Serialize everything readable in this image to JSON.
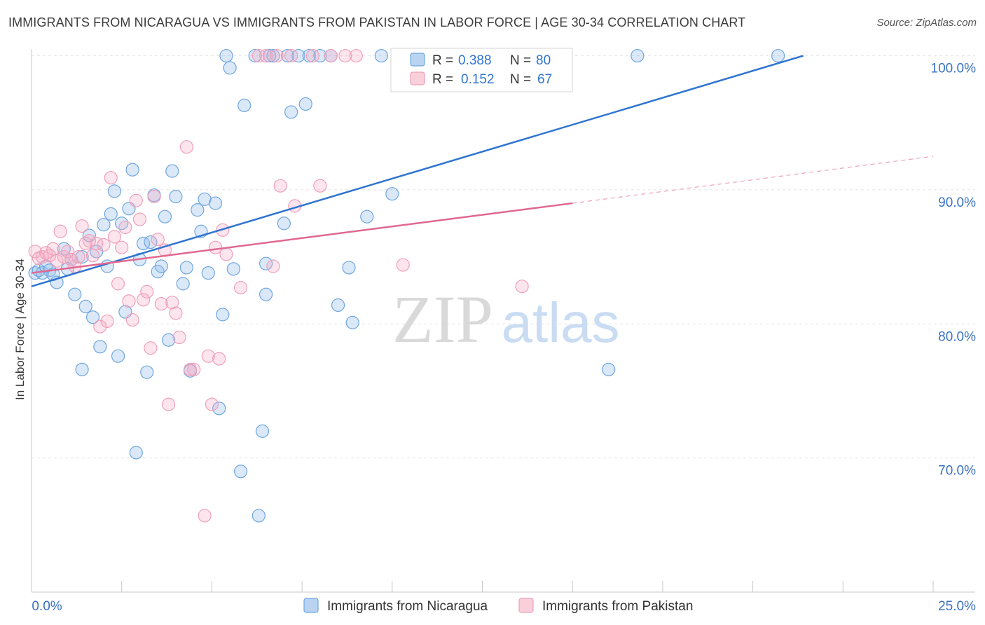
{
  "header": {
    "title": "IMMIGRANTS FROM NICARAGUA VS IMMIGRANTS FROM PAKISTAN IN LABOR FORCE | AGE 30-34 CORRELATION CHART",
    "source": "Source: ZipAtlas.com"
  },
  "watermark": {
    "part1": "ZIP",
    "part2": "atlas"
  },
  "chart_data": {
    "type": "scatter",
    "xlabel": "",
    "ylabel": "In Labor Force | Age 30-34",
    "xlim": [
      0,
      25
    ],
    "ylim": [
      60,
      100.5
    ],
    "x_tick_labels": [
      {
        "value": 0,
        "label": "0.0%"
      },
      {
        "value": 25,
        "label": "25.0%"
      }
    ],
    "y_tick_labels": [
      {
        "value": 100,
        "label": "100.0%"
      },
      {
        "value": 90,
        "label": "90.0%"
      },
      {
        "value": 80,
        "label": "80.0%"
      },
      {
        "value": 70,
        "label": "70.0%"
      }
    ],
    "grid": true,
    "legend_position": "top-center",
    "colors": {
      "nicaragua": "#6fa6e0",
      "pakistan": "#f0a0b8",
      "nicaragua_line": "#2f74d0",
      "pakistan_line": "#e06890",
      "stat_value": "#2f74d0"
    },
    "stats": [
      {
        "r_label": "R =",
        "r_value": "0.388",
        "n_label": "N =",
        "n_value": "80"
      },
      {
        "r_label": "R =",
        "r_value": "0.152",
        "n_label": "N =",
        "n_value": "67"
      }
    ],
    "series": [
      {
        "name": "Immigrants from Nicaragua",
        "trend": {
          "x": [
            0,
            21.4
          ],
          "y": [
            82.8,
            100.0
          ]
        },
        "points": [
          [
            0.1,
            83.8
          ],
          [
            0.2,
            84.0
          ],
          [
            0.3,
            83.8
          ],
          [
            0.4,
            84.3
          ],
          [
            0.5,
            84.0
          ],
          [
            0.6,
            83.7
          ],
          [
            0.7,
            83.1
          ],
          [
            0.9,
            85.6
          ],
          [
            1.0,
            84.1
          ],
          [
            1.1,
            84.8
          ],
          [
            1.2,
            82.2
          ],
          [
            1.4,
            85.0
          ],
          [
            1.4,
            76.6
          ],
          [
            1.5,
            81.3
          ],
          [
            1.6,
            86.6
          ],
          [
            1.7,
            80.5
          ],
          [
            1.8,
            85.4
          ],
          [
            1.9,
            78.3
          ],
          [
            2.0,
            87.4
          ],
          [
            2.1,
            84.3
          ],
          [
            2.2,
            88.2
          ],
          [
            2.3,
            89.9
          ],
          [
            2.4,
            77.6
          ],
          [
            2.5,
            87.5
          ],
          [
            2.6,
            80.9
          ],
          [
            2.7,
            88.6
          ],
          [
            2.8,
            91.5
          ],
          [
            2.9,
            70.4
          ],
          [
            3.0,
            84.8
          ],
          [
            3.1,
            86.0
          ],
          [
            3.2,
            76.4
          ],
          [
            3.3,
            86.1
          ],
          [
            3.4,
            89.6
          ],
          [
            3.5,
            83.9
          ],
          [
            3.6,
            84.3
          ],
          [
            3.7,
            88.0
          ],
          [
            3.8,
            78.8
          ],
          [
            3.9,
            91.4
          ],
          [
            4.0,
            89.5
          ],
          [
            4.2,
            83.0
          ],
          [
            4.3,
            84.2
          ],
          [
            4.4,
            76.5
          ],
          [
            4.6,
            88.5
          ],
          [
            4.7,
            86.9
          ],
          [
            4.8,
            89.3
          ],
          [
            4.9,
            83.8
          ],
          [
            5.1,
            89.0
          ],
          [
            5.2,
            73.7
          ],
          [
            5.3,
            80.7
          ],
          [
            5.4,
            100.0
          ],
          [
            5.5,
            99.1
          ],
          [
            5.6,
            84.1
          ],
          [
            5.8,
            69.0
          ],
          [
            5.9,
            96.3
          ],
          [
            6.2,
            100.0
          ],
          [
            6.3,
            65.7
          ],
          [
            6.4,
            72.0
          ],
          [
            6.5,
            84.5
          ],
          [
            6.5,
            82.2
          ],
          [
            6.6,
            100.0
          ],
          [
            6.7,
            100.0
          ],
          [
            7.0,
            87.5
          ],
          [
            7.1,
            100.0
          ],
          [
            7.2,
            95.8
          ],
          [
            7.4,
            100.0
          ],
          [
            7.6,
            96.4
          ],
          [
            7.7,
            100.0
          ],
          [
            8.0,
            100.0
          ],
          [
            8.3,
            100.0
          ],
          [
            8.5,
            81.4
          ],
          [
            8.8,
            84.2
          ],
          [
            8.9,
            80.1
          ],
          [
            9.3,
            88.0
          ],
          [
            9.7,
            100.0
          ],
          [
            10.0,
            89.7
          ],
          [
            10.3,
            98.7
          ],
          [
            10.6,
            100.0
          ],
          [
            16.0,
            76.6
          ],
          [
            16.8,
            100.0
          ],
          [
            20.7,
            100.0
          ]
        ]
      },
      {
        "name": "Immigrants from Pakistan",
        "trend": {
          "x": [
            0,
            15.0
          ],
          "y": [
            83.8,
            89.0
          ]
        },
        "trend_extension": {
          "x": [
            15.0,
            25.0
          ],
          "y": [
            89.0,
            92.5
          ]
        },
        "points": [
          [
            0.1,
            85.4
          ],
          [
            0.2,
            84.9
          ],
          [
            0.3,
            85.0
          ],
          [
            0.4,
            85.3
          ],
          [
            0.5,
            85.1
          ],
          [
            0.6,
            85.6
          ],
          [
            0.7,
            84.7
          ],
          [
            0.8,
            86.9
          ],
          [
            0.9,
            85.0
          ],
          [
            1.0,
            85.4
          ],
          [
            1.1,
            84.8
          ],
          [
            1.2,
            84.3
          ],
          [
            1.3,
            85.0
          ],
          [
            1.4,
            87.3
          ],
          [
            1.5,
            86.0
          ],
          [
            1.6,
            86.2
          ],
          [
            1.7,
            85.1
          ],
          [
            1.8,
            86.0
          ],
          [
            1.9,
            79.8
          ],
          [
            2.0,
            85.9
          ],
          [
            2.1,
            80.2
          ],
          [
            2.2,
            90.9
          ],
          [
            2.3,
            86.5
          ],
          [
            2.4,
            83.0
          ],
          [
            2.5,
            85.7
          ],
          [
            2.6,
            87.2
          ],
          [
            2.7,
            81.7
          ],
          [
            2.8,
            80.3
          ],
          [
            2.9,
            89.2
          ],
          [
            3.0,
            87.8
          ],
          [
            3.1,
            81.8
          ],
          [
            3.2,
            82.4
          ],
          [
            3.3,
            78.2
          ],
          [
            3.4,
            89.5
          ],
          [
            3.5,
            86.3
          ],
          [
            3.6,
            81.5
          ],
          [
            3.7,
            85.5
          ],
          [
            3.8,
            74.0
          ],
          [
            3.9,
            81.6
          ],
          [
            4.0,
            80.8
          ],
          [
            4.1,
            79.0
          ],
          [
            4.3,
            93.2
          ],
          [
            4.4,
            76.6
          ],
          [
            4.5,
            76.6
          ],
          [
            4.8,
            65.7
          ],
          [
            4.9,
            77.6
          ],
          [
            5.0,
            74.0
          ],
          [
            5.1,
            85.7
          ],
          [
            5.2,
            77.4
          ],
          [
            5.3,
            87.0
          ],
          [
            5.4,
            85.2
          ],
          [
            5.8,
            82.7
          ],
          [
            6.3,
            100.0
          ],
          [
            6.5,
            100.0
          ],
          [
            6.7,
            84.3
          ],
          [
            6.8,
            100.0
          ],
          [
            6.9,
            90.3
          ],
          [
            7.2,
            100.0
          ],
          [
            7.3,
            88.8
          ],
          [
            7.8,
            100.0
          ],
          [
            8.0,
            90.3
          ],
          [
            8.3,
            100.0
          ],
          [
            8.7,
            100.0
          ],
          [
            9.0,
            100.0
          ],
          [
            10.2,
            100.0
          ],
          [
            10.3,
            84.4
          ],
          [
            13.6,
            82.8
          ]
        ]
      }
    ]
  }
}
